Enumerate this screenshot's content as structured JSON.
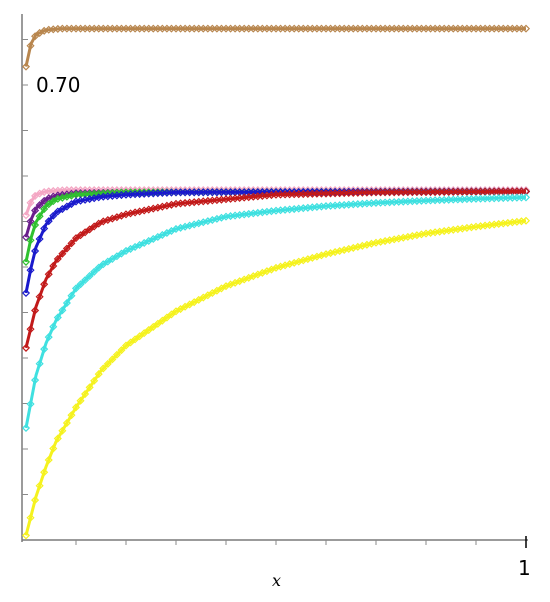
{
  "chart_data": {
    "type": "line",
    "title": "",
    "xlabel": "x",
    "ylabel": "",
    "xlim": [
      0,
      1
    ],
    "ylim": [
      0.615,
      0.73
    ],
    "x_tick_labels": [
      {
        "value": 1,
        "label": "1"
      }
    ],
    "y_tick_labels": [
      {
        "value": 0.7,
        "label": "0.70"
      }
    ],
    "grid": false,
    "legend": "none",
    "marker": "diamond",
    "series": [
      {
        "color": "#b8864e",
        "values": [
          [
            0,
            0.7185
          ],
          [
            0.01,
            0.7235
          ],
          [
            0.02,
            0.7255
          ],
          [
            0.04,
            0.7265
          ],
          [
            0.07,
            0.7268
          ],
          [
            0.15,
            0.7268
          ],
          [
            0.5,
            0.7268
          ],
          [
            1,
            0.7268
          ]
        ]
      },
      {
        "color": "#f4a7c4",
        "values": [
          [
            0,
            0.686
          ],
          [
            0.01,
            0.689
          ],
          [
            0.02,
            0.6905
          ],
          [
            0.04,
            0.6912
          ],
          [
            0.08,
            0.6915
          ],
          [
            0.2,
            0.6915
          ],
          [
            1,
            0.6915
          ]
        ]
      },
      {
        "color": "#6a1e8c",
        "values": [
          [
            0,
            0.6812
          ],
          [
            0.01,
            0.685
          ],
          [
            0.02,
            0.6875
          ],
          [
            0.04,
            0.6895
          ],
          [
            0.06,
            0.6903
          ],
          [
            0.1,
            0.6908
          ],
          [
            0.2,
            0.691
          ],
          [
            1,
            0.6912
          ]
        ]
      },
      {
        "color": "#2fc12f",
        "values": [
          [
            0,
            0.6758
          ],
          [
            0.01,
            0.681
          ],
          [
            0.02,
            0.6845
          ],
          [
            0.04,
            0.688
          ],
          [
            0.06,
            0.6895
          ],
          [
            0.1,
            0.6905
          ],
          [
            0.2,
            0.691
          ],
          [
            1,
            0.6912
          ]
        ]
      },
      {
        "color": "#1a1acc",
        "values": [
          [
            0,
            0.669
          ],
          [
            0.01,
            0.6745
          ],
          [
            0.02,
            0.679
          ],
          [
            0.04,
            0.684
          ],
          [
            0.06,
            0.6866
          ],
          [
            0.1,
            0.689
          ],
          [
            0.15,
            0.69
          ],
          [
            0.2,
            0.6905
          ],
          [
            0.3,
            0.691
          ],
          [
            1,
            0.6912
          ]
        ]
      },
      {
        "color": "#c21a1a",
        "values": [
          [
            0,
            0.657
          ],
          [
            0.02,
            0.666
          ],
          [
            0.04,
            0.672
          ],
          [
            0.06,
            0.676
          ],
          [
            0.1,
            0.681
          ],
          [
            0.15,
            0.6845
          ],
          [
            0.2,
            0.6862
          ],
          [
            0.3,
            0.6885
          ],
          [
            0.5,
            0.6905
          ],
          [
            0.7,
            0.691
          ],
          [
            1,
            0.6912
          ]
        ]
      },
      {
        "color": "#3fe0e0",
        "values": [
          [
            0,
            0.6395
          ],
          [
            0.02,
            0.651
          ],
          [
            0.04,
            0.658
          ],
          [
            0.06,
            0.663
          ],
          [
            0.1,
            0.67
          ],
          [
            0.15,
            0.675
          ],
          [
            0.2,
            0.6782
          ],
          [
            0.3,
            0.683
          ],
          [
            0.4,
            0.6857
          ],
          [
            0.5,
            0.687
          ],
          [
            0.6,
            0.688
          ],
          [
            0.7,
            0.6887
          ],
          [
            0.8,
            0.6892
          ],
          [
            0.9,
            0.6896
          ],
          [
            1,
            0.6899
          ]
        ]
      },
      {
        "color": "#f5f21e",
        "values": [
          [
            0,
            0.616
          ],
          [
            0.02,
            0.6245
          ],
          [
            0.04,
            0.631
          ],
          [
            0.06,
            0.6365
          ],
          [
            0.1,
            0.644
          ],
          [
            0.15,
            0.652
          ],
          [
            0.2,
            0.6575
          ],
          [
            0.3,
            0.665
          ],
          [
            0.4,
            0.6705
          ],
          [
            0.5,
            0.6745
          ],
          [
            0.6,
            0.6775
          ],
          [
            0.7,
            0.68
          ],
          [
            0.8,
            0.682
          ],
          [
            0.9,
            0.6835
          ],
          [
            1,
            0.6848
          ]
        ]
      }
    ]
  }
}
